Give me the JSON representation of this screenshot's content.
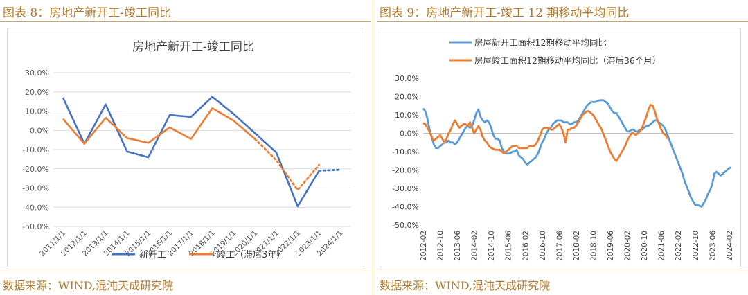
{
  "left_panel": {
    "figure_title": "图表 8：房地产新开工-竣工同比",
    "source": "数据来源：WIND,混沌天成研究院"
  },
  "right_panel": {
    "figure_title": "图表 9：房地产新开工-竣工 12 期移动平均同比",
    "source": "数据来源：WIND,混沌天成研究院"
  },
  "chart_data": [
    {
      "type": "line",
      "title": "房地产新开工-竣工同比",
      "xlabel": "",
      "ylabel": "",
      "ylim": [
        -50,
        30
      ],
      "y_ticks": [
        "30.0%",
        "20.0%",
        "10.0%",
        "0.0%",
        "-10.0%",
        "-20.0%",
        "-30.0%",
        "-40.0%",
        "-50.0%"
      ],
      "x_ticks": [
        "2011/1/1",
        "2012/1/1",
        "2013/1/1",
        "2014/1/1",
        "2015/1/1",
        "2016/1/1",
        "2017/1/1",
        "2018/1/1",
        "2019/1/1",
        "2020/1/1",
        "2021/1/1",
        "2022/1/1",
        "2023/1/1",
        "2024/1/1"
      ],
      "grid": true,
      "legend": "bottom",
      "colors": {
        "series1": "#4472c4",
        "series2": "#ed7d31"
      },
      "series": [
        {
          "name": "新开工",
          "values": [
            17.0,
            -7.0,
            13.5,
            -11.0,
            -14.0,
            8.0,
            7.0,
            17.5,
            8.5,
            -1.5,
            -11.5,
            -39.5,
            -21.0,
            -20.5
          ],
          "solid_until_index": 12
        },
        {
          "name": "竣工（滞后3年）",
          "values": [
            6.0,
            -7.0,
            6.5,
            -4.0,
            -6.5,
            1.5,
            -4.5,
            11.5,
            5.0,
            -4.5,
            -15.5,
            -31.0,
            -18.0,
            null
          ],
          "solid_until_index": 9
        }
      ]
    },
    {
      "type": "line",
      "title": "",
      "xlabel": "",
      "ylabel": "",
      "ylim": [
        -50,
        30
      ],
      "y_ticks": [
        "30.0%",
        "20.0%",
        "10.0%",
        "0.0%",
        "-10.0%",
        "-20.0%",
        "-30.0%",
        "-40.0%",
        "-50.0%"
      ],
      "x_ticks": [
        "2012-02",
        "2012-10",
        "2013-06",
        "2014-02",
        "2014-10",
        "2015-06",
        "2016-02",
        "2016-10",
        "2017-06",
        "2018-02",
        "2018-10",
        "2019-06",
        "2020-02",
        "2020-10",
        "2021-06",
        "2022-02",
        "2022-10",
        "2023-06",
        "2024-02"
      ],
      "grid": true,
      "legend": "top-left",
      "colors": {
        "series1": "#5b9bd5",
        "series2": "#ed7d31"
      },
      "series": [
        {
          "name": "房屋新开工面积12期移动平均同比",
          "points": [
            [
              0,
              13.5
            ],
            [
              1,
              12
            ],
            [
              2,
              8
            ],
            [
              3,
              2
            ],
            [
              4,
              -2
            ],
            [
              5,
              -6
            ],
            [
              6,
              -8
            ],
            [
              7,
              -8
            ],
            [
              8,
              -7
            ],
            [
              9,
              -6
            ],
            [
              10,
              -5
            ],
            [
              11,
              -5
            ],
            [
              12,
              -4
            ],
            [
              13,
              -5
            ],
            [
              14,
              -5
            ],
            [
              15,
              -6
            ],
            [
              16,
              -5
            ],
            [
              17,
              -3
            ],
            [
              18,
              -1
            ],
            [
              19,
              1
            ],
            [
              20,
              3
            ],
            [
              21,
              4
            ],
            [
              22,
              3
            ],
            [
              23,
              4
            ],
            [
              24,
              7
            ],
            [
              25,
              11
            ],
            [
              26,
              13
            ],
            [
              27,
              9
            ],
            [
              28,
              7
            ],
            [
              29,
              6
            ],
            [
              30,
              7
            ],
            [
              31,
              6
            ],
            [
              32,
              3
            ],
            [
              33,
              -1
            ],
            [
              34,
              -3
            ],
            [
              35,
              -3
            ],
            [
              36,
              -4
            ],
            [
              37,
              -8
            ],
            [
              38,
              -10
            ],
            [
              39,
              -11
            ],
            [
              40,
              -11
            ],
            [
              41,
              -11
            ],
            [
              42,
              -10
            ],
            [
              43,
              -10
            ],
            [
              44,
              -9
            ],
            [
              45,
              -12
            ],
            [
              46,
              -13
            ],
            [
              47,
              -14
            ],
            [
              48,
              -16
            ],
            [
              49,
              -17
            ],
            [
              50,
              -16
            ],
            [
              51,
              -15
            ],
            [
              52,
              -14
            ],
            [
              53,
              -13
            ],
            [
              54,
              -11
            ],
            [
              55,
              -8
            ],
            [
              56,
              -5
            ],
            [
              57,
              -3
            ],
            [
              58,
              0
            ],
            [
              59,
              2
            ],
            [
              60,
              3
            ],
            [
              61,
              5
            ],
            [
              62,
              6
            ],
            [
              63,
              7
            ],
            [
              64,
              7
            ],
            [
              65,
              7
            ],
            [
              66,
              6
            ],
            [
              67,
              6
            ],
            [
              68,
              6
            ],
            [
              69,
              5
            ],
            [
              70,
              5
            ],
            [
              71,
              6
            ],
            [
              72,
              6
            ],
            [
              73,
              7
            ],
            [
              74,
              9
            ],
            [
              75,
              11
            ],
            [
              76,
              13
            ],
            [
              77,
              15
            ],
            [
              78,
              16
            ],
            [
              79,
              17
            ],
            [
              80,
              17
            ],
            [
              81,
              17
            ],
            [
              82,
              17.5
            ],
            [
              83,
              18
            ],
            [
              84,
              18
            ],
            [
              85,
              18
            ],
            [
              86,
              17
            ],
            [
              87,
              16
            ],
            [
              88,
              14
            ],
            [
              89,
              12
            ],
            [
              90,
              11
            ],
            [
              91,
              11
            ],
            [
              92,
              9
            ],
            [
              93,
              7
            ],
            [
              94,
              5
            ],
            [
              95,
              3
            ],
            [
              96,
              1
            ],
            [
              97,
              1
            ],
            [
              98,
              2
            ],
            [
              99,
              2
            ],
            [
              100,
              1
            ],
            [
              101,
              1
            ],
            [
              102,
              2
            ],
            [
              103,
              2
            ],
            [
              104,
              3
            ],
            [
              105,
              4
            ],
            [
              106,
              4
            ],
            [
              107,
              5
            ],
            [
              108,
              6
            ],
            [
              109,
              7
            ],
            [
              110,
              7
            ],
            [
              111,
              6
            ],
            [
              112,
              5
            ],
            [
              113,
              4
            ],
            [
              114,
              2
            ],
            [
              115,
              -1
            ],
            [
              116,
              -4
            ],
            [
              117,
              -7
            ],
            [
              118,
              -10
            ],
            [
              119,
              -13
            ],
            [
              120,
              -16
            ],
            [
              121,
              -19
            ],
            [
              122,
              -22
            ],
            [
              123,
              -26
            ],
            [
              124,
              -29
            ],
            [
              125,
              -32
            ],
            [
              126,
              -35
            ],
            [
              127,
              -37
            ],
            [
              128,
              -39
            ],
            [
              129,
              -39
            ],
            [
              130,
              -39.5
            ],
            [
              131,
              -40
            ],
            [
              132,
              -38
            ],
            [
              133,
              -36
            ],
            [
              134,
              -33
            ],
            [
              135,
              -31
            ],
            [
              136,
              -28
            ],
            [
              137,
              -22
            ],
            [
              138,
              -21
            ],
            [
              139,
              -22
            ],
            [
              140,
              -23
            ],
            [
              141,
              -22
            ],
            [
              142,
              -21
            ],
            [
              143,
              -20
            ],
            [
              144,
              -19
            ],
            [
              145,
              -18.5
            ]
          ]
        },
        {
          "name": "房屋竣工面积12期移动平均同比（滞后36个月）",
          "points": [
            [
              0,
              5.5
            ],
            [
              1,
              5
            ],
            [
              2,
              3
            ],
            [
              3,
              1
            ],
            [
              4,
              -2
            ],
            [
              5,
              -4
            ],
            [
              6,
              -3
            ],
            [
              7,
              -2
            ],
            [
              8,
              -1
            ],
            [
              9,
              -3
            ],
            [
              10,
              -5
            ],
            [
              11,
              -3
            ],
            [
              12,
              0
            ],
            [
              13,
              2
            ],
            [
              14,
              5
            ],
            [
              15,
              7
            ],
            [
              16,
              5
            ],
            [
              17,
              3
            ],
            [
              18,
              4
            ],
            [
              19,
              5
            ],
            [
              20,
              5
            ],
            [
              21,
              4
            ],
            [
              22,
              6
            ],
            [
              23,
              3
            ],
            [
              24,
              0
            ],
            [
              25,
              2
            ],
            [
              26,
              4
            ],
            [
              27,
              2
            ],
            [
              28,
              -2
            ],
            [
              29,
              -4
            ],
            [
              30,
              -5
            ],
            [
              31,
              -7
            ],
            [
              32,
              -8
            ],
            [
              33,
              -8.5
            ],
            [
              34,
              -9
            ],
            [
              35,
              -9
            ],
            [
              36,
              -9
            ],
            [
              37,
              -10
            ],
            [
              38,
              -11
            ],
            [
              39,
              -10
            ],
            [
              40,
              -9
            ],
            [
              41,
              -8
            ],
            [
              42,
              -7
            ],
            [
              43,
              -7
            ],
            [
              44,
              -7
            ],
            [
              45,
              -8
            ],
            [
              46,
              -8
            ],
            [
              47,
              -8
            ],
            [
              48,
              -8
            ],
            [
              49,
              -8
            ],
            [
              50,
              -7
            ],
            [
              51,
              -7
            ],
            [
              52,
              -7
            ],
            [
              53,
              -6
            ],
            [
              54,
              -4
            ],
            [
              55,
              -1
            ],
            [
              56,
              2
            ],
            [
              57,
              3
            ],
            [
              58,
              3
            ],
            [
              59,
              3
            ],
            [
              60,
              2
            ],
            [
              61,
              2
            ],
            [
              62,
              3
            ],
            [
              63,
              4
            ],
            [
              64,
              5
            ],
            [
              65,
              3
            ],
            [
              66,
              0
            ],
            [
              67,
              -5
            ],
            [
              68,
              2
            ],
            [
              69,
              2
            ],
            [
              70,
              3
            ],
            [
              71,
              3
            ],
            [
              72,
              4
            ],
            [
              73,
              6
            ],
            [
              74,
              8
            ],
            [
              75,
              10
            ],
            [
              76,
              11
            ],
            [
              77,
              12
            ],
            [
              78,
              12
            ],
            [
              79,
              11
            ],
            [
              80,
              10
            ],
            [
              81,
              8
            ],
            [
              82,
              6
            ],
            [
              83,
              4
            ],
            [
              84,
              2
            ],
            [
              85,
              -1
            ],
            [
              86,
              -4
            ],
            [
              87,
              -7
            ],
            [
              88,
              -10
            ],
            [
              89,
              -12
            ],
            [
              90,
              -14
            ],
            [
              91,
              -15
            ],
            [
              92,
              -13
            ],
            [
              93,
              -11
            ],
            [
              94,
              -9
            ],
            [
              95,
              -7
            ],
            [
              96,
              -4
            ],
            [
              97,
              -2
            ],
            [
              98,
              0
            ],
            [
              99,
              0
            ],
            [
              100,
              -1
            ],
            [
              101,
              0
            ],
            [
              102,
              1
            ],
            [
              103,
              3
            ],
            [
              104,
              6
            ],
            [
              105,
              9
            ],
            [
              106,
              13
            ],
            [
              107,
              15.5
            ],
            [
              108,
              15
            ],
            [
              109,
              12
            ],
            [
              110,
              8
            ],
            [
              111,
              5
            ],
            [
              112,
              2
            ],
            [
              113,
              0
            ],
            [
              114,
              -1
            ],
            [
              115,
              -3
            ]
          ]
        }
      ]
    }
  ]
}
